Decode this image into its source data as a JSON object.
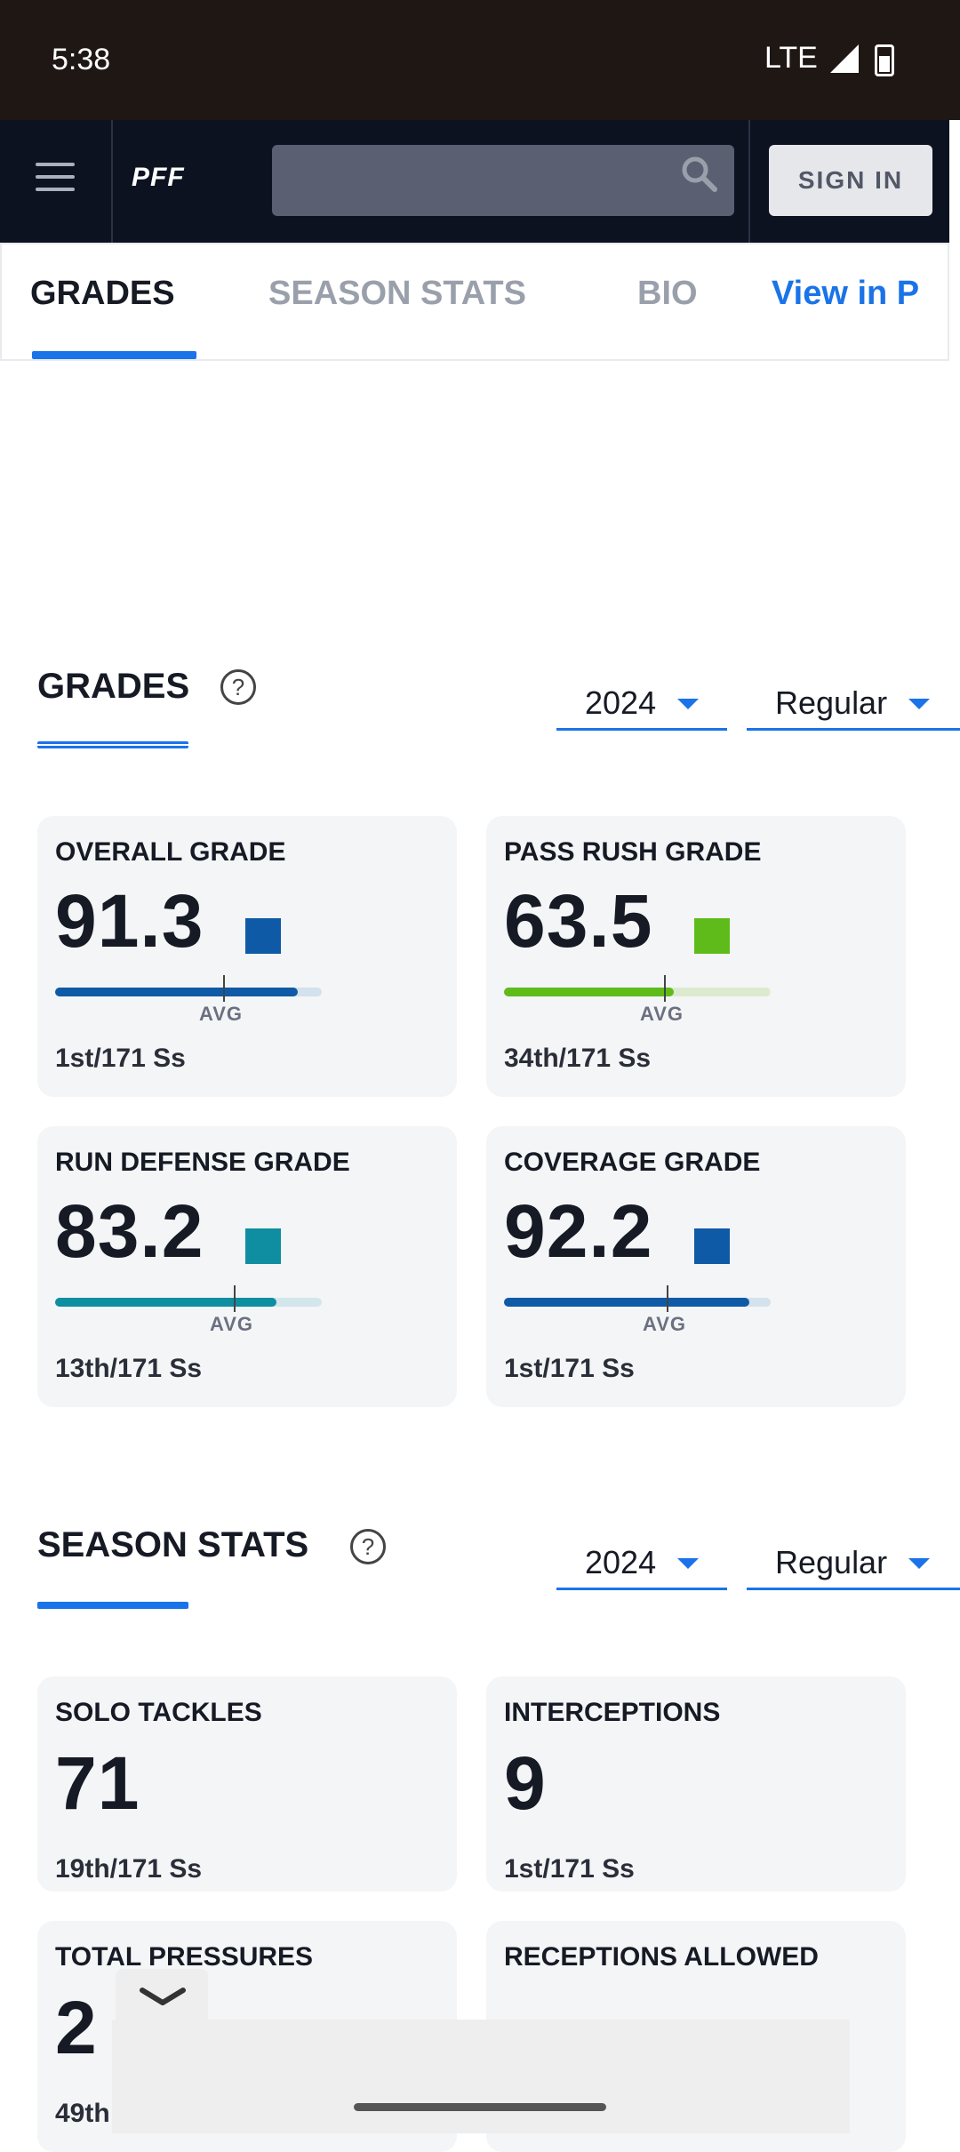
{
  "status_bar": {
    "time": "5:38",
    "network": "LTE"
  },
  "navbar": {
    "logo": "PFF",
    "search_placeholder": "",
    "signin_label": "SIGN IN"
  },
  "tabs": [
    {
      "label": "GRADES",
      "active": true
    },
    {
      "label": "SEASON STATS",
      "active": false
    },
    {
      "label": "BIO",
      "active": false
    },
    {
      "label": "View in P",
      "active": false
    }
  ],
  "grades_section": {
    "title": "GRADES",
    "help": "?",
    "year": "2024",
    "season_type": "Regular",
    "cards": [
      {
        "label": "OVERALL GRADE",
        "value": "91.3",
        "color": "#0f5aa6",
        "track": "#d3e2ec",
        "fill": 0.91,
        "avg": 0.63,
        "avg_label": "AVG",
        "rank": "1st/171 Ss"
      },
      {
        "label": "PASS RUSH GRADE",
        "value": "63.5",
        "color": "#5fbb1a",
        "track": "#dcebd0",
        "fill": 0.635,
        "avg": 0.6,
        "avg_label": "AVG",
        "rank": "34th/171 Ss"
      },
      {
        "label": "RUN DEFENSE GRADE",
        "value": "83.2",
        "color": "#0e8ea0",
        "track": "#d3e6ec",
        "fill": 0.83,
        "avg": 0.67,
        "avg_label": "AVG",
        "rank": "13th/171 Ss"
      },
      {
        "label": "COVERAGE GRADE",
        "value": "92.2",
        "color": "#0f5aa6",
        "track": "#d3e2ec",
        "fill": 0.92,
        "avg": 0.61,
        "avg_label": "AVG",
        "rank": "1st/171 Ss"
      }
    ]
  },
  "stats_section": {
    "title": "SEASON STATS",
    "help": "?",
    "year": "2024",
    "season_type": "Regular",
    "cards": [
      {
        "label": "SOLO TACKLES",
        "value": "71",
        "rank": "19th/171 Ss"
      },
      {
        "label": "INTERCEPTIONS",
        "value": "9",
        "rank": "1st/171 Ss"
      },
      {
        "label": "TOTAL PRESSURES",
        "value": "2",
        "rank": "49th"
      },
      {
        "label": "RECEPTIONS ALLOWED",
        "value": "",
        "rank": ""
      }
    ]
  },
  "icons": {
    "menu": "hamburger-icon",
    "search": "search-icon",
    "help": "help-circle-icon",
    "caret": "caret-down-icon",
    "collapse": "chevron-down-icon"
  },
  "colors": {
    "accent": "#1a73e8",
    "navbar": "#0c1220",
    "status_bar": "#1e1714"
  }
}
